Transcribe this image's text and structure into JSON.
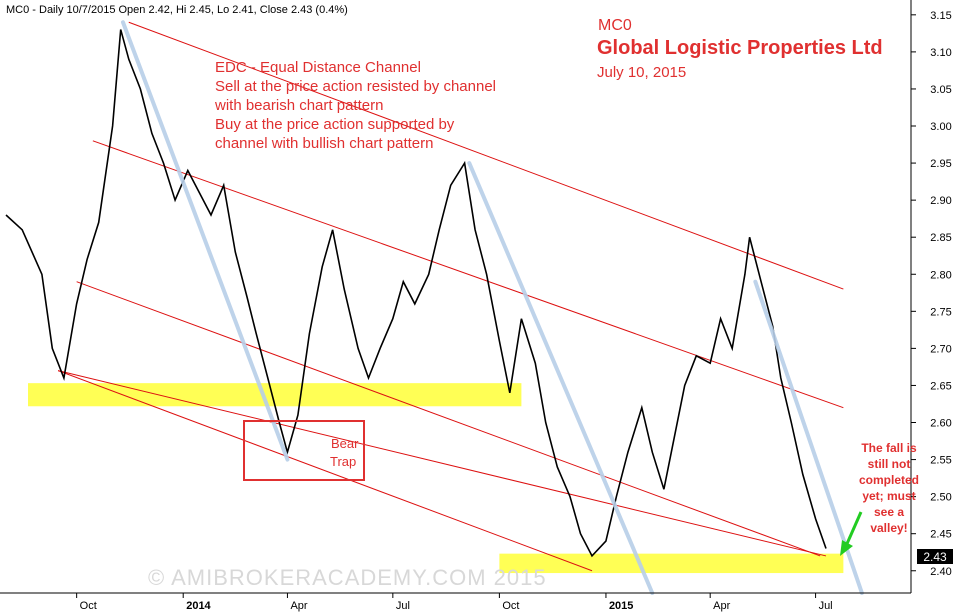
{
  "header": {
    "info": "MC0 - Daily 10/7/2015 Open 2.42, Hi 2.45, Lo 2.41, Close 2.43 (0.4%)"
  },
  "titles": {
    "ticker": "MC0",
    "company": "Global Logistic Properties Ltd",
    "date": "July 10, 2015"
  },
  "annotations": {
    "edc_lines": [
      "EDC - Equal Distance Channel",
      "Sell at the price action resisted by channel",
      "with bearish chart pattern",
      "Buy at the price action supported by",
      "channel with bullish chart pattern"
    ],
    "bear_trap": [
      "Bear",
      "Trap"
    ],
    "fall_note": [
      "The fall is",
      "still not",
      "completed",
      "yet; must",
      "see a",
      "valley!"
    ],
    "watermark": "© AMIBROKERACADEMY.COM 2015"
  },
  "colors": {
    "price": "#000000",
    "annotation_red": "#e03030",
    "channel_red": "#dd1111",
    "trend_blue": "#b8cfe8",
    "support_yellow": "#ffff55",
    "arrow_green": "#22cc22",
    "watermark": "#d8d8d8",
    "last_price_bg": "#000000"
  },
  "chart_data": {
    "type": "line",
    "x_start": "2013-08-01",
    "x_end": "2015-07-10",
    "ylim": [
      2.37,
      3.17
    ],
    "y_ticks": [
      "3.15",
      "3.10",
      "3.05",
      "3.00",
      "2.95",
      "2.90",
      "2.85",
      "2.80",
      "2.75",
      "2.70",
      "2.65",
      "2.60",
      "2.55",
      "2.50",
      "2.45",
      "2.40"
    ],
    "x_ticks": [
      {
        "label": "Oct",
        "date": "2013-10-01"
      },
      {
        "label": "2014",
        "date": "2014-01-01"
      },
      {
        "label": "Apr",
        "date": "2014-04-01"
      },
      {
        "label": "Jul",
        "date": "2014-07-01"
      },
      {
        "label": "Oct",
        "date": "2014-10-01"
      },
      {
        "label": "2015",
        "date": "2015-01-01"
      },
      {
        "label": "Apr",
        "date": "2015-04-01"
      },
      {
        "label": "Jul",
        "date": "2015-07-01"
      }
    ],
    "last_price": "2.43",
    "price_series": [
      [
        "2013-08-01",
        2.88
      ],
      [
        "2013-08-15",
        2.86
      ],
      [
        "2013-09-01",
        2.8
      ],
      [
        "2013-09-10",
        2.7
      ],
      [
        "2013-09-20",
        2.66
      ],
      [
        "2013-10-01",
        2.76
      ],
      [
        "2013-10-10",
        2.82
      ],
      [
        "2013-10-20",
        2.87
      ],
      [
        "2013-11-01",
        3.0
      ],
      [
        "2013-11-08",
        3.13
      ],
      [
        "2013-11-15",
        3.09
      ],
      [
        "2013-11-25",
        3.05
      ],
      [
        "2013-12-05",
        2.99
      ],
      [
        "2013-12-15",
        2.95
      ],
      [
        "2013-12-25",
        2.9
      ],
      [
        "2014-01-05",
        2.94
      ],
      [
        "2014-01-15",
        2.91
      ],
      [
        "2014-01-25",
        2.88
      ],
      [
        "2014-02-05",
        2.92
      ],
      [
        "2014-02-15",
        2.83
      ],
      [
        "2014-02-25",
        2.77
      ],
      [
        "2014-03-05",
        2.72
      ],
      [
        "2014-03-15",
        2.66
      ],
      [
        "2014-03-25",
        2.6
      ],
      [
        "2014-04-01",
        2.56
      ],
      [
        "2014-04-10",
        2.61
      ],
      [
        "2014-04-20",
        2.72
      ],
      [
        "2014-05-01",
        2.81
      ],
      [
        "2014-05-10",
        2.86
      ],
      [
        "2014-05-20",
        2.78
      ],
      [
        "2014-06-01",
        2.7
      ],
      [
        "2014-06-10",
        2.66
      ],
      [
        "2014-06-20",
        2.7
      ],
      [
        "2014-07-01",
        2.74
      ],
      [
        "2014-07-10",
        2.79
      ],
      [
        "2014-07-20",
        2.76
      ],
      [
        "2014-08-01",
        2.8
      ],
      [
        "2014-08-10",
        2.86
      ],
      [
        "2014-08-20",
        2.92
      ],
      [
        "2014-09-01",
        2.95
      ],
      [
        "2014-09-10",
        2.86
      ],
      [
        "2014-09-20",
        2.8
      ],
      [
        "2014-10-01",
        2.71
      ],
      [
        "2014-10-10",
        2.64
      ],
      [
        "2014-10-20",
        2.74
      ],
      [
        "2014-11-01",
        2.68
      ],
      [
        "2014-11-10",
        2.6
      ],
      [
        "2014-11-20",
        2.54
      ],
      [
        "2014-12-01",
        2.5
      ],
      [
        "2014-12-10",
        2.45
      ],
      [
        "2014-12-20",
        2.42
      ],
      [
        "2015-01-01",
        2.44
      ],
      [
        "2015-01-10",
        2.5
      ],
      [
        "2015-01-20",
        2.56
      ],
      [
        "2015-02-01",
        2.62
      ],
      [
        "2015-02-10",
        2.56
      ],
      [
        "2015-02-20",
        2.51
      ],
      [
        "2015-03-01",
        2.58
      ],
      [
        "2015-03-10",
        2.65
      ],
      [
        "2015-03-20",
        2.69
      ],
      [
        "2015-04-01",
        2.68
      ],
      [
        "2015-04-10",
        2.74
      ],
      [
        "2015-04-20",
        2.7
      ],
      [
        "2015-05-01",
        2.8
      ],
      [
        "2015-05-05",
        2.85
      ],
      [
        "2015-05-15",
        2.79
      ],
      [
        "2015-05-25",
        2.73
      ],
      [
        "2015-06-01",
        2.66
      ],
      [
        "2015-06-10",
        2.6
      ],
      [
        "2015-06-20",
        2.53
      ],
      [
        "2015-07-01",
        2.47
      ],
      [
        "2015-07-10",
        2.43
      ]
    ],
    "channel_lines": [
      [
        [
          "2013-09-15",
          2.67
        ],
        [
          "2015-07-10",
          2.42
        ]
      ],
      [
        [
          "2013-10-15",
          2.98
        ],
        [
          "2015-07-25",
          2.62
        ]
      ],
      [
        [
          "2013-11-15",
          3.14
        ],
        [
          "2015-07-25",
          2.78
        ]
      ],
      [
        [
          "2013-10-01",
          2.79
        ],
        [
          "2015-07-05",
          2.42
        ]
      ],
      [
        [
          "2013-09-15",
          2.67
        ],
        [
          "2014-12-20",
          2.4
        ]
      ]
    ],
    "trend_lines": [
      [
        [
          "2013-11-10",
          3.14
        ],
        [
          "2014-04-01",
          2.55
        ]
      ],
      [
        [
          "2014-09-05",
          2.95
        ],
        [
          "2015-02-10",
          2.37
        ]
      ],
      [
        [
          "2015-05-10",
          2.79
        ],
        [
          "2015-08-10",
          2.37
        ]
      ]
    ],
    "support_zones": [
      {
        "from": "2013-08-20",
        "to": "2014-10-20",
        "low": 2.63,
        "high": 2.645
      },
      {
        "from": "2014-10-01",
        "to": "2015-07-25",
        "low": 2.405,
        "high": 2.415
      }
    ]
  }
}
